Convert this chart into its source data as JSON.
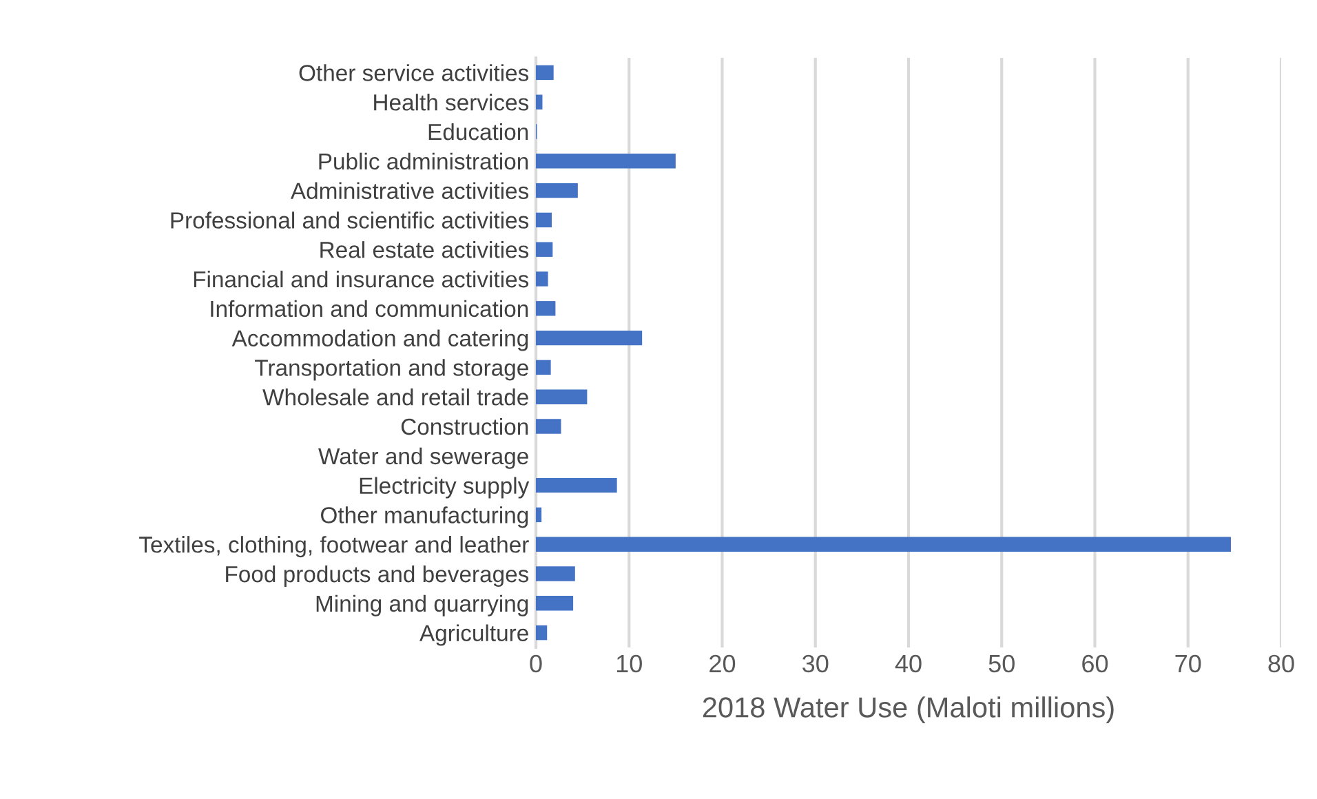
{
  "chart_data": {
    "type": "bar",
    "orientation": "horizontal",
    "xlabel": "2018 Water Use (Maloti millions)",
    "categories": [
      "Other service activities",
      "Health services",
      "Education",
      "Public administration",
      "Administrative activities",
      "Professional and scientific activities",
      "Real estate activities",
      "Financial and insurance activities",
      "Information and communication",
      "Accommodation and catering",
      "Transportation and storage",
      "Wholesale and retail trade",
      "Construction",
      "Water and sewerage",
      "Electricity supply",
      "Other manufacturing",
      "Textiles, clothing, footwear and leather",
      "Food products and beverages",
      "Mining and quarrying",
      "Agriculture"
    ],
    "values": [
      1.9,
      0.7,
      0.1,
      15.0,
      4.5,
      1.7,
      1.8,
      1.3,
      2.1,
      11.4,
      1.6,
      5.5,
      2.7,
      0,
      8.7,
      0.6,
      74.6,
      4.2,
      4.0,
      1.2
    ],
    "color": "#4472c4",
    "xlim": [
      0,
      80
    ],
    "xticks": [
      0,
      10,
      20,
      30,
      40,
      50,
      60,
      70,
      80
    ],
    "grid": "x",
    "legend": false
  }
}
